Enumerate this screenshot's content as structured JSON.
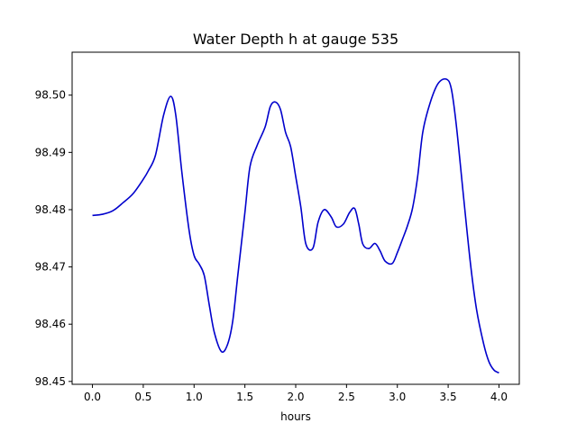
{
  "chart_data": {
    "type": "line",
    "title": "Water Depth h at gauge 535",
    "xlabel": "hours",
    "ylabel": "",
    "xlim": [
      -0.2,
      4.2
    ],
    "ylim": [
      98.4495,
      98.5075
    ],
    "xticks": [
      0.0,
      0.5,
      1.0,
      1.5,
      2.0,
      2.5,
      3.0,
      3.5,
      4.0
    ],
    "xtick_labels": [
      "0.0",
      "0.5",
      "1.0",
      "1.5",
      "2.0",
      "2.5",
      "3.0",
      "3.5",
      "4.0"
    ],
    "yticks": [
      98.45,
      98.46,
      98.47,
      98.48,
      98.49,
      98.5
    ],
    "ytick_labels": [
      "98.45",
      "98.46",
      "98.47",
      "98.48",
      "98.49",
      "98.50"
    ],
    "grid": false,
    "series": [
      {
        "color": "#0000cc",
        "x": [
          0.0,
          0.1,
          0.2,
          0.3,
          0.4,
          0.5,
          0.55,
          0.62,
          0.7,
          0.77,
          0.82,
          0.88,
          0.95,
          1.0,
          1.05,
          1.1,
          1.15,
          1.2,
          1.27,
          1.33,
          1.38,
          1.43,
          1.5,
          1.55,
          1.62,
          1.7,
          1.75,
          1.8,
          1.85,
          1.9,
          1.95,
          2.0,
          2.05,
          2.1,
          2.17,
          2.22,
          2.28,
          2.35,
          2.4,
          2.47,
          2.53,
          2.58,
          2.62,
          2.66,
          2.72,
          2.78,
          2.83,
          2.88,
          2.95,
          3.0,
          3.05,
          3.1,
          3.15,
          3.2,
          3.25,
          3.32,
          3.4,
          3.48,
          3.53,
          3.58,
          3.65,
          3.72,
          3.78,
          3.85,
          3.9,
          3.95,
          4.0
        ],
        "y": [
          98.479,
          98.4792,
          98.4798,
          98.4812,
          98.4828,
          98.4853,
          98.4868,
          98.4895,
          98.4965,
          98.4998,
          98.4965,
          98.4865,
          98.4765,
          98.472,
          98.4705,
          98.4685,
          98.4633,
          98.4585,
          98.4552,
          98.4565,
          98.4605,
          98.4685,
          98.4795,
          98.4875,
          98.4912,
          98.4945,
          98.498,
          98.4988,
          98.4975,
          98.4935,
          98.491,
          98.4858,
          98.4805,
          98.474,
          98.4733,
          98.4778,
          98.48,
          98.4787,
          98.477,
          98.4775,
          98.4795,
          98.4802,
          98.4775,
          98.474,
          98.4732,
          98.4741,
          98.4728,
          98.471,
          98.4706,
          98.4725,
          98.4748,
          98.4772,
          98.4803,
          98.4858,
          98.4935,
          98.4985,
          98.502,
          98.5028,
          98.5012,
          98.4948,
          98.4825,
          98.4705,
          98.4625,
          98.4565,
          98.4535,
          98.452,
          98.4515
        ]
      }
    ]
  }
}
